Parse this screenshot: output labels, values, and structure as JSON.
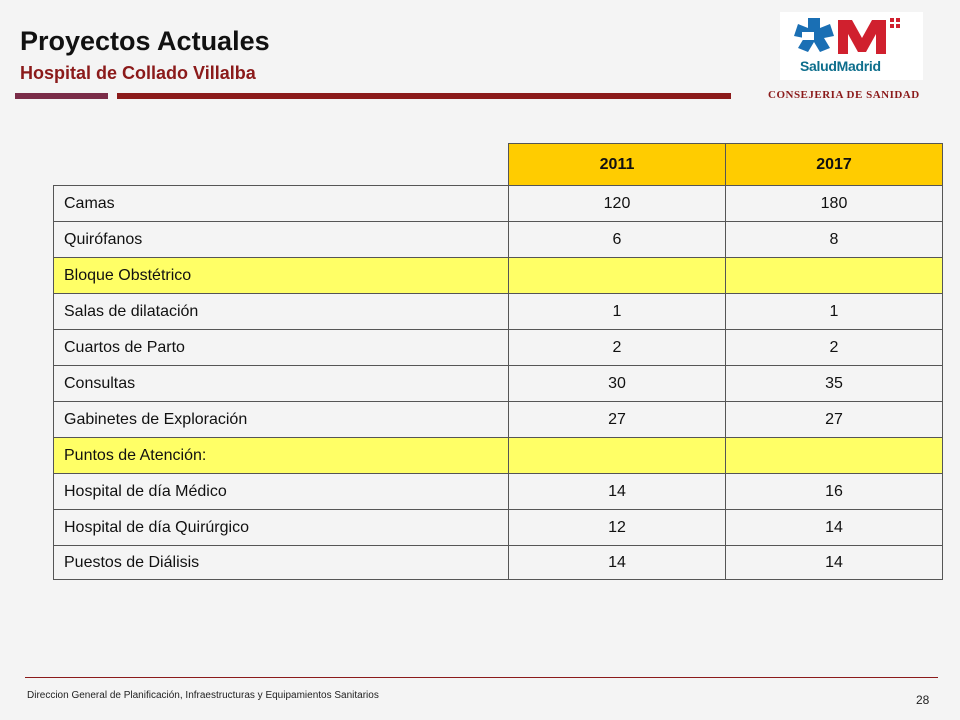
{
  "header": {
    "title": "Proyectos Actuales",
    "subtitle": "Hospital de Collado Villalba",
    "logo_text": "SaludMadrid",
    "organization": "CONSEJERIA DE SANIDAD"
  },
  "table": {
    "columns": [
      "2011",
      "2017"
    ],
    "rows": [
      {
        "label": "Camas",
        "v2011": "120",
        "v2017": "180",
        "section": false
      },
      {
        "label": "Quirófanos",
        "v2011": "6",
        "v2017": "8",
        "section": false
      },
      {
        "label": "Bloque Obstétrico",
        "v2011": "",
        "v2017": "",
        "section": true
      },
      {
        "label": "Salas de dilatación",
        "v2011": "1",
        "v2017": "1",
        "section": false
      },
      {
        "label": "Cuartos de Parto",
        "v2011": "2",
        "v2017": "2",
        "section": false
      },
      {
        "label": "Consultas",
        "v2011": "30",
        "v2017": "35",
        "section": false
      },
      {
        "label": "Gabinetes de Exploración",
        "v2011": "27",
        "v2017": "27",
        "section": false
      },
      {
        "label": "Puntos de Atención:",
        "v2011": "",
        "v2017": "",
        "section": true
      },
      {
        "label": "Hospital de día Médico",
        "v2011": "14",
        "v2017": "16",
        "section": false
      },
      {
        "label": "Hospital de día Quirúrgico",
        "v2011": "12",
        "v2017": "14",
        "section": false
      },
      {
        "label": "Puestos de Diálisis",
        "v2011": "14",
        "v2017": "14",
        "section": false
      }
    ]
  },
  "footer": {
    "text": "Direccion General de Planificación, Infraestructuras y Equipamientos Sanitarios",
    "page_number": "28"
  },
  "colors": {
    "accent": "#8b1a1a",
    "header_fill": "#ffcc00",
    "section_fill": "#ffff66",
    "logo_blue": "#0d6e8c",
    "logo_red": "#d0202e"
  }
}
